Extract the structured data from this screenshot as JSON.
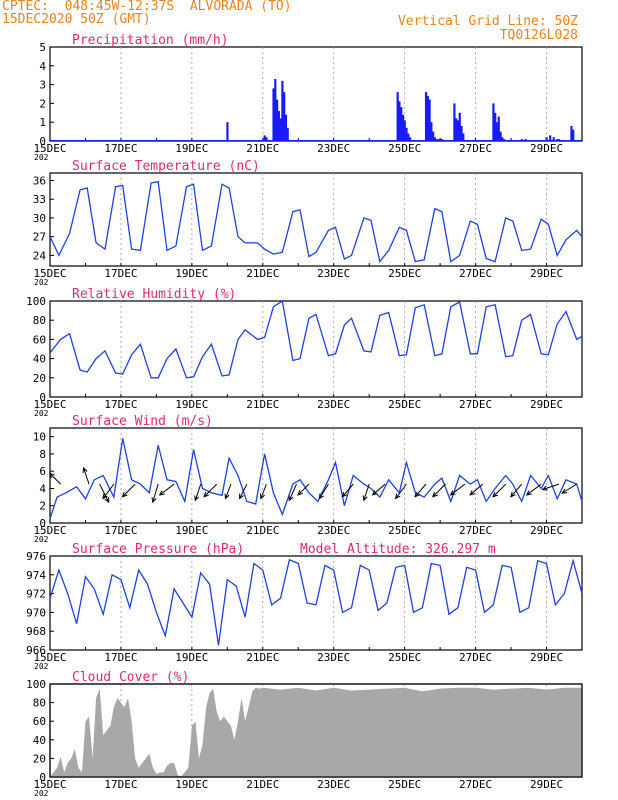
{
  "header": {
    "line1_left": "CPTEC:  048:45W-12:37S  ALVORADA (TO)",
    "line2_left": "15DEC2020 50Z (GMT)",
    "line1_right": "Vertical Grid Line: 50Z",
    "line2_right": "TQ0126L028",
    "color": "#e8821e",
    "title_color": "#e0287a"
  },
  "x_ticks": [
    "15DEC",
    "17DEC",
    "19DEC",
    "21DEC",
    "23DEC",
    "25DEC",
    "27DEC",
    "29DEC"
  ],
  "x_year_stub": "202",
  "model_altitude": "Model Altitude: 326.297 m",
  "chart_data": [
    {
      "id": "precip",
      "type": "bar",
      "title": "Precipitation (mm/h)",
      "ylim": [
        0,
        5
      ],
      "yticks": [
        "0",
        "1",
        "2",
        "3",
        "4",
        "5"
      ],
      "color": "#1a1aff",
      "x_days": [
        5.0,
        6.05,
        6.1,
        6.3,
        6.35,
        6.4,
        6.45,
        6.5,
        6.55,
        6.6,
        6.65,
        6.7,
        9.8,
        9.85,
        9.9,
        9.95,
        10.0,
        10.05,
        10.1,
        10.15,
        10.6,
        10.65,
        10.7,
        10.75,
        10.8,
        10.85,
        10.9,
        10.95,
        11.0,
        11.05,
        11.4,
        11.45,
        11.5,
        11.55,
        11.6,
        11.65,
        12.5,
        12.55,
        12.6,
        12.65,
        12.7,
        12.75,
        12.8,
        13.3,
        13.4,
        14.0,
        14.1,
        14.2,
        14.3,
        14.35,
        14.7,
        14.75
      ],
      "values": [
        1.0,
        0.3,
        0.2,
        2.8,
        3.3,
        2.2,
        1.6,
        1.2,
        3.2,
        2.6,
        1.4,
        0.7,
        2.6,
        2.1,
        1.8,
        1.4,
        1.1,
        0.7,
        0.4,
        0.2,
        2.6,
        2.4,
        2.2,
        1.0,
        0.5,
        0.2,
        0.1,
        0.1,
        0.1,
        0.1,
        2.0,
        1.2,
        1.1,
        1.5,
        0.8,
        0.4,
        2.0,
        1.5,
        1.0,
        1.3,
        0.5,
        0.2,
        0.1,
        0.1,
        0.1,
        0.2,
        0.3,
        0.2,
        0.1,
        0.1,
        0.8,
        0.6
      ]
    },
    {
      "id": "temp",
      "type": "line",
      "title": "Surface Temperature (nC)",
      "ylim": [
        22.3,
        37.2
      ],
      "yticks": [
        "24",
        "27",
        "30",
        "33",
        "36"
      ],
      "ytick_values": [
        24,
        27,
        30,
        33,
        36
      ],
      "color": "#2040e0",
      "x_days": [
        0,
        0.25,
        0.55,
        0.85,
        1.05,
        1.3,
        1.55,
        1.85,
        2.05,
        2.3,
        2.55,
        2.85,
        3.05,
        3.3,
        3.55,
        3.85,
        4.05,
        4.3,
        4.55,
        4.85,
        5.05,
        5.3,
        5.5,
        5.85,
        6.05,
        6.3,
        6.55,
        6.85,
        7.05,
        7.3,
        7.5,
        7.85,
        8.05,
        8.3,
        8.5,
        8.85,
        9.05,
        9.3,
        9.55,
        9.85,
        10.05,
        10.3,
        10.55,
        10.85,
        11.05,
        11.3,
        11.55,
        11.85,
        12.05,
        12.3,
        12.55,
        12.85,
        13.05,
        13.3,
        13.55,
        13.85,
        14.05,
        14.3,
        14.55,
        14.85,
        15.0
      ],
      "values": [
        27.0,
        24.0,
        27.5,
        34.5,
        34.8,
        26.0,
        25.0,
        35.0,
        35.2,
        25.0,
        24.8,
        35.6,
        35.8,
        24.8,
        25.5,
        35.0,
        35.4,
        24.8,
        25.5,
        35.4,
        34.8,
        27.0,
        26.0,
        26.0,
        25.0,
        24.2,
        24.5,
        31.0,
        31.3,
        23.8,
        24.5,
        28.0,
        28.5,
        23.4,
        24.0,
        30.0,
        29.6,
        23.0,
        24.8,
        28.5,
        28.0,
        23.0,
        23.3,
        31.5,
        31.0,
        23.0,
        24.0,
        29.5,
        29.0,
        23.5,
        23.0,
        30.0,
        29.5,
        24.8,
        25.0,
        29.8,
        29.0,
        24.0,
        26.5,
        28.0,
        27.0
      ]
    },
    {
      "id": "rh",
      "type": "line",
      "title": "Relative Humidity (%)",
      "ylim": [
        0,
        100
      ],
      "yticks": [
        "0",
        "20",
        "40",
        "60",
        "80",
        "100"
      ],
      "ytick_values": [
        0,
        20,
        40,
        60,
        80,
        100
      ],
      "color": "#2040e0",
      "x_days": [
        0,
        0.3,
        0.55,
        0.85,
        1.05,
        1.3,
        1.55,
        1.85,
        2.05,
        2.3,
        2.55,
        2.85,
        3.05,
        3.3,
        3.55,
        3.85,
        4.05,
        4.3,
        4.55,
        4.85,
        5.05,
        5.3,
        5.5,
        5.85,
        6.05,
        6.3,
        6.55,
        6.85,
        7.05,
        7.3,
        7.5,
        7.85,
        8.05,
        8.3,
        8.5,
        8.85,
        9.05,
        9.3,
        9.55,
        9.85,
        10.05,
        10.3,
        10.55,
        10.85,
        11.05,
        11.3,
        11.55,
        11.85,
        12.05,
        12.3,
        12.55,
        12.85,
        13.05,
        13.3,
        13.55,
        13.85,
        14.05,
        14.3,
        14.55,
        14.85,
        15.0
      ],
      "values": [
        46,
        60,
        66,
        28,
        26,
        40,
        48,
        25,
        24,
        44,
        55,
        20,
        20,
        40,
        50,
        20,
        21,
        42,
        55,
        22,
        23,
        60,
        70,
        60,
        62,
        94,
        100,
        38,
        40,
        82,
        86,
        43,
        45,
        75,
        82,
        48,
        47,
        85,
        88,
        43,
        44,
        93,
        96,
        43,
        45,
        94,
        99,
        45,
        45,
        94,
        96,
        42,
        43,
        80,
        86,
        45,
        44,
        76,
        89,
        60,
        63
      ]
    },
    {
      "id": "wind",
      "type": "line",
      "title": "Surface Wind (m/s)",
      "ylim": [
        0,
        11
      ],
      "yticks": [
        "0",
        "2",
        "4",
        "6",
        "8",
        "10"
      ],
      "ytick_values": [
        0,
        2,
        4,
        6,
        8,
        10
      ],
      "color": "#2040e0",
      "x_days": [
        0,
        0.2,
        0.45,
        0.75,
        1.0,
        1.25,
        1.5,
        1.8,
        2.05,
        2.3,
        2.55,
        2.8,
        3.05,
        3.3,
        3.55,
        3.8,
        4.05,
        4.3,
        4.55,
        4.85,
        5.05,
        5.3,
        5.55,
        5.8,
        6.05,
        6.3,
        6.55,
        6.85,
        7.05,
        7.3,
        7.55,
        7.85,
        8.05,
        8.3,
        8.55,
        8.85,
        9.05,
        9.3,
        9.55,
        9.85,
        10.05,
        10.3,
        10.55,
        10.85,
        11.05,
        11.3,
        11.55,
        11.85,
        12.05,
        12.3,
        12.55,
        12.85,
        13.05,
        13.3,
        13.55,
        13.85,
        14.05,
        14.3,
        14.55,
        14.85,
        15.0
      ],
      "values": [
        0.5,
        3.0,
        3.5,
        4.2,
        2.8,
        5.0,
        5.5,
        3.0,
        9.8,
        5.0,
        4.5,
        3.5,
        9.0,
        5.0,
        4.8,
        2.5,
        8.5,
        4.0,
        3.5,
        3.2,
        7.5,
        5.5,
        2.5,
        2.2,
        8.0,
        3.5,
        1.0,
        4.5,
        5.0,
        3.5,
        2.5,
        5.0,
        7.0,
        2.0,
        5.5,
        4.5,
        4.0,
        3.0,
        5.0,
        3.5,
        7.0,
        3.5,
        3.0,
        4.5,
        5.2,
        2.5,
        5.5,
        4.5,
        5.0,
        2.5,
        4.0,
        5.5,
        4.5,
        2.5,
        5.5,
        4.0,
        5.5,
        2.8,
        5.0,
        4.5,
        2.5
      ],
      "arrows": [
        {
          "x": 0.3,
          "dx": -0.6,
          "dy": 0.6
        },
        {
          "x": 1.1,
          "dx": -0.3,
          "dy": 0.9
        },
        {
          "x": 1.4,
          "dx": 0.5,
          "dy": -1.0
        },
        {
          "x": 1.8,
          "dx": -0.6,
          "dy": -0.8
        },
        {
          "x": 2.4,
          "dx": -0.7,
          "dy": -0.7
        },
        {
          "x": 3.05,
          "dx": -0.3,
          "dy": -1.0
        },
        {
          "x": 3.5,
          "dx": -0.8,
          "dy": -0.6
        },
        {
          "x": 4.25,
          "dx": -0.3,
          "dy": -0.9
        },
        {
          "x": 4.7,
          "dx": -0.7,
          "dy": -0.7
        },
        {
          "x": 5.1,
          "dx": -0.3,
          "dy": -0.8
        },
        {
          "x": 5.55,
          "dx": -0.4,
          "dy": -0.8
        },
        {
          "x": 6.1,
          "dx": -0.3,
          "dy": -0.8
        },
        {
          "x": 6.95,
          "dx": -0.4,
          "dy": -0.9
        },
        {
          "x": 7.3,
          "dx": -0.6,
          "dy": -0.6
        },
        {
          "x": 7.85,
          "dx": -0.5,
          "dy": -0.8
        },
        {
          "x": 8.55,
          "dx": -0.6,
          "dy": -0.7
        },
        {
          "x": 9.0,
          "dx": -0.3,
          "dy": -0.9
        },
        {
          "x": 9.45,
          "dx": -0.7,
          "dy": -0.6
        },
        {
          "x": 10.05,
          "dx": -0.6,
          "dy": -0.8
        },
        {
          "x": 10.6,
          "dx": -0.6,
          "dy": -0.7
        },
        {
          "x": 11.15,
          "dx": -0.7,
          "dy": -0.7
        },
        {
          "x": 11.7,
          "dx": -0.8,
          "dy": -0.6
        },
        {
          "x": 12.2,
          "dx": -0.7,
          "dy": -0.6
        },
        {
          "x": 12.85,
          "dx": -0.7,
          "dy": -0.7
        },
        {
          "x": 13.3,
          "dx": -0.6,
          "dy": -0.7
        },
        {
          "x": 13.85,
          "dx": -0.8,
          "dy": -0.6
        },
        {
          "x": 14.35,
          "dx": -0.9,
          "dy": -0.3
        },
        {
          "x": 14.85,
          "dx": -0.8,
          "dy": -0.5
        }
      ]
    },
    {
      "id": "pres",
      "type": "line",
      "title": "Surface Pressure (hPa)",
      "ylim": [
        966,
        976
      ],
      "yticks": [
        "966",
        "968",
        "970",
        "972",
        "974",
        "976"
      ],
      "ytick_values": [
        966,
        968,
        970,
        972,
        974,
        976
      ],
      "color": "#2040e0",
      "x_days": [
        0,
        0.25,
        0.5,
        0.75,
        1.0,
        1.25,
        1.5,
        1.75,
        2.0,
        2.25,
        2.5,
        2.75,
        3.0,
        3.25,
        3.5,
        3.75,
        4.0,
        4.25,
        4.5,
        4.75,
        5.0,
        5.25,
        5.5,
        5.75,
        6.0,
        6.25,
        6.5,
        6.75,
        7.0,
        7.25,
        7.5,
        7.75,
        8.0,
        8.25,
        8.5,
        8.75,
        9.0,
        9.25,
        9.5,
        9.75,
        10.0,
        10.25,
        10.5,
        10.75,
        11.0,
        11.25,
        11.5,
        11.75,
        12.0,
        12.25,
        12.5,
        12.75,
        13.0,
        13.25,
        13.5,
        13.75,
        14.0,
        14.25,
        14.5,
        14.75,
        15.0
      ],
      "values": [
        971.5,
        974.5,
        972.0,
        968.8,
        973.8,
        972.5,
        969.8,
        974.0,
        973.5,
        970.5,
        974.5,
        973.0,
        970.0,
        967.5,
        972.5,
        971.0,
        969.5,
        974.2,
        973.0,
        966.5,
        973.5,
        972.8,
        969.5,
        975.2,
        974.5,
        970.8,
        971.5,
        975.6,
        975.2,
        971.0,
        970.8,
        975.0,
        974.5,
        970.0,
        970.5,
        975.0,
        974.5,
        970.2,
        971.0,
        974.8,
        975.0,
        970.0,
        970.5,
        975.2,
        975.0,
        969.8,
        970.5,
        974.8,
        974.5,
        970.0,
        970.8,
        975.0,
        974.8,
        970.0,
        970.5,
        975.5,
        975.2,
        970.8,
        972.0,
        975.5,
        972.0
      ]
    },
    {
      "id": "cloud",
      "type": "area",
      "title": "Cloud Cover (%)",
      "ylim": [
        0,
        100
      ],
      "yticks": [
        "0",
        "20",
        "40",
        "60",
        "80",
        "100"
      ],
      "ytick_values": [
        0,
        20,
        40,
        60,
        80,
        100
      ],
      "color": "#a8a8a8",
      "x_days": [
        0,
        0.2,
        0.3,
        0.4,
        0.5,
        0.6,
        0.7,
        0.8,
        0.9,
        1.0,
        1.1,
        1.2,
        1.3,
        1.35,
        1.4,
        1.5,
        1.6,
        1.7,
        1.8,
        1.9,
        2.0,
        2.1,
        2.2,
        2.3,
        2.4,
        2.5,
        2.6,
        2.7,
        2.8,
        2.9,
        3.0,
        3.1,
        3.2,
        3.3,
        3.4,
        3.5,
        3.6,
        3.7,
        3.8,
        3.9,
        4.0,
        4.1,
        4.2,
        4.3,
        4.4,
        4.5,
        4.6,
        4.7,
        4.8,
        4.9,
        5.0,
        5.1,
        5.2,
        5.3,
        5.4,
        5.5,
        5.6,
        5.7,
        5.8,
        5.9,
        6.0,
        6.5,
        7.0,
        7.5,
        8.0,
        8.5,
        9.0,
        9.5,
        10.0,
        10.5,
        11.0,
        11.5,
        12.0,
        12.5,
        13.0,
        13.5,
        14.0,
        14.5,
        15.0
      ],
      "values": [
        0,
        10,
        22,
        5,
        15,
        20,
        30,
        10,
        5,
        60,
        65,
        20,
        85,
        90,
        95,
        45,
        50,
        55,
        75,
        85,
        80,
        75,
        85,
        60,
        20,
        10,
        15,
        20,
        25,
        10,
        3,
        5,
        5,
        12,
        15,
        15,
        2,
        1,
        5,
        10,
        55,
        60,
        20,
        35,
        75,
        90,
        95,
        70,
        60,
        65,
        60,
        55,
        40,
        60,
        85,
        60,
        75,
        92,
        96,
        95,
        96,
        94,
        96,
        93,
        96,
        93,
        94,
        95,
        96,
        92,
        95,
        96,
        96,
        94,
        95,
        96,
        94,
        96,
        96
      ]
    }
  ]
}
